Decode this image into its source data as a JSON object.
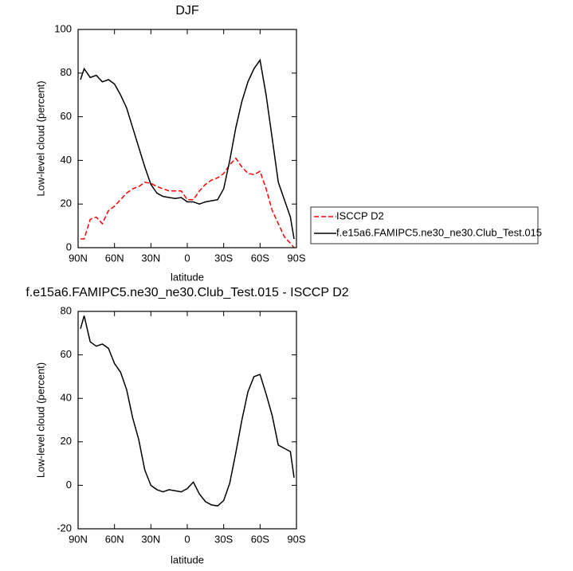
{
  "chart_data": [
    {
      "type": "line",
      "title": "DJF",
      "x_label": "latitude",
      "y_label": "Low-level cloud (percent)",
      "x": [
        88,
        85,
        80,
        75,
        70,
        65,
        60,
        55,
        50,
        45,
        40,
        35,
        30,
        25,
        20,
        15,
        10,
        5,
        0,
        -5,
        -10,
        -15,
        -20,
        -25,
        -30,
        -35,
        -40,
        -45,
        -50,
        -55,
        -60,
        -65,
        -70,
        -75,
        -80,
        -85,
        -88
      ],
      "series": [
        {
          "name": "ISCCP D2",
          "color": "#ff0000",
          "line_style": "dashed",
          "values": [
            4,
            4,
            13,
            14,
            11,
            17,
            19,
            22,
            25,
            27,
            28,
            30,
            29.5,
            28,
            27,
            26,
            26,
            26,
            22,
            22,
            26,
            29,
            31,
            32,
            34,
            38,
            41,
            37,
            34,
            33.5,
            35,
            27,
            17,
            11,
            5,
            2,
            0
          ]
        },
        {
          "name": "f.e15a6.FAMIPC5.ne30_ne30.Club_Test.015",
          "color": "#000000",
          "line_style": "solid",
          "values": [
            77,
            82,
            78,
            79,
            76,
            77,
            75,
            70,
            64,
            55,
            46,
            37,
            29,
            25,
            23.5,
            23,
            22.5,
            23,
            21,
            21,
            20,
            21,
            21.5,
            22,
            27,
            40,
            55,
            67,
            76,
            82,
            86,
            70,
            50,
            30,
            22,
            14,
            4
          ]
        }
      ],
      "xlim": [
        90,
        -90
      ],
      "xticks": [
        {
          "value": 90,
          "label": "90N"
        },
        {
          "value": 60,
          "label": "60N"
        },
        {
          "value": 30,
          "label": "30N"
        },
        0,
        {
          "value": -30,
          "label": "30S"
        },
        {
          "value": -60,
          "label": "60S"
        },
        {
          "value": -90,
          "label": "90S"
        }
      ],
      "ylim": [
        0,
        100
      ],
      "yticks": [
        0,
        20,
        40,
        60,
        80,
        100
      ],
      "legend": "outside-right"
    },
    {
      "type": "line",
      "title": "f.e15a6.FAMIPC5.ne30_ne30.Club_Test.015 - ISCCP D2",
      "x_label": "latitude",
      "y_label": "Low-level cloud (percent)",
      "x": [
        88,
        85,
        80,
        75,
        70,
        65,
        60,
        55,
        50,
        45,
        40,
        35,
        30,
        25,
        20,
        15,
        10,
        5,
        0,
        -5,
        -10,
        -15,
        -20,
        -25,
        -30,
        -35,
        -40,
        -45,
        -50,
        -55,
        -60,
        -65,
        -70,
        -75,
        -80,
        -85,
        -88
      ],
      "series": [
        {
          "color": "#000000",
          "line_style": "solid",
          "values": [
            72,
            78,
            66,
            64,
            65,
            63,
            56,
            52,
            44,
            31,
            21,
            7,
            0,
            -2,
            -3,
            -2,
            -2.5,
            -3,
            -1.5,
            1.5,
            -4,
            -7.5,
            -9,
            -9.5,
            -7,
            1,
            15,
            30,
            43,
            50,
            51,
            42,
            32,
            18.5,
            17,
            15.5,
            3.5
          ]
        }
      ],
      "xlim": [
        90,
        -90
      ],
      "xticks": [
        {
          "value": 90,
          "label": "90N"
        },
        {
          "value": 60,
          "label": "60N"
        },
        {
          "value": 30,
          "label": "30N"
        },
        0,
        {
          "value": -30,
          "label": "30S"
        },
        {
          "value": -60,
          "label": "60S"
        },
        {
          "value": -90,
          "label": "90S"
        }
      ],
      "ylim": [
        -20,
        80
      ],
      "yticks": [
        -20,
        0,
        20,
        40,
        60,
        80
      ]
    }
  ]
}
